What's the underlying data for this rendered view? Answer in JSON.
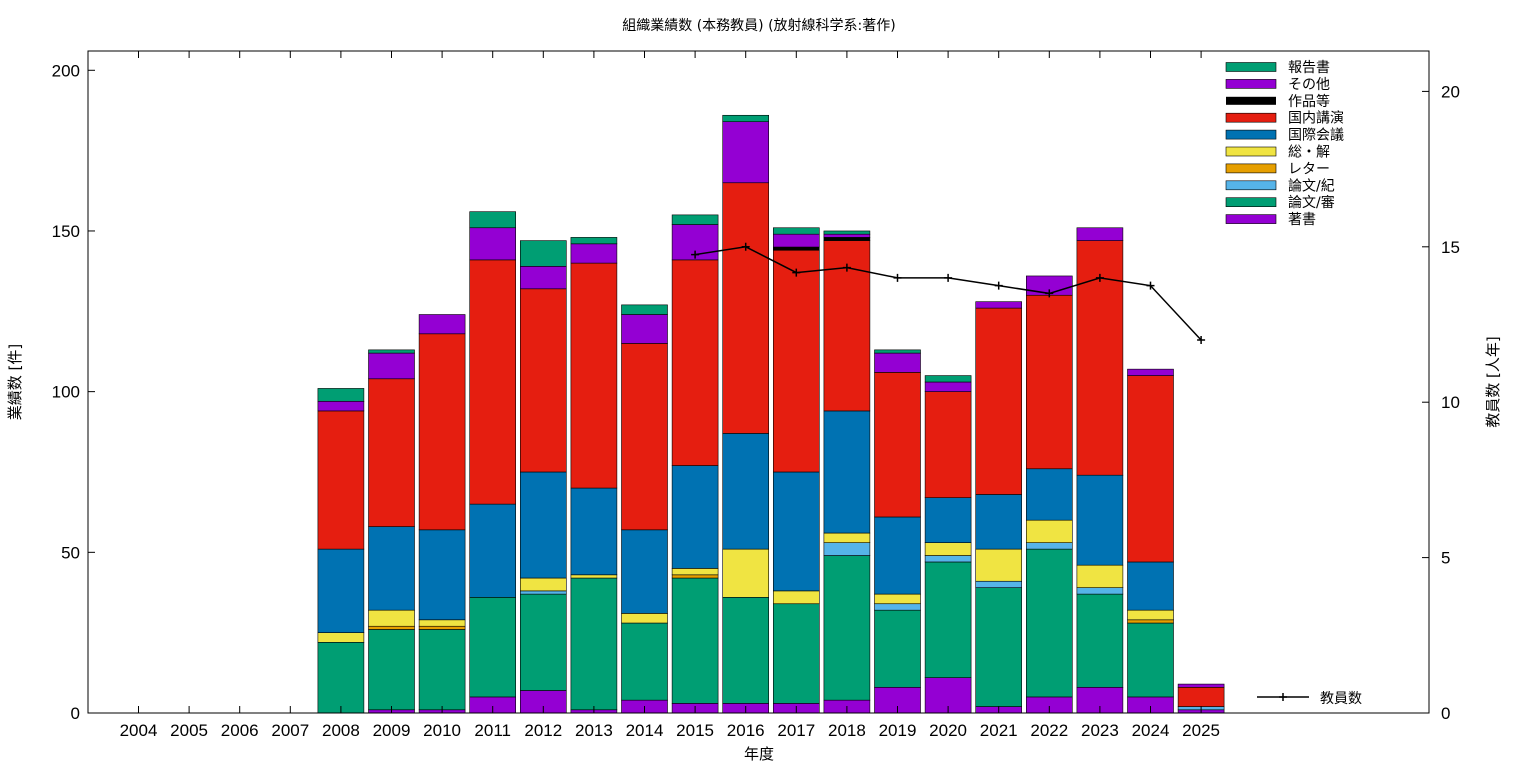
{
  "chart_data": {
    "type": "bar",
    "title": "組織業績数 (本務教員) (放射線科学系:著作)",
    "xlabel": "年度",
    "ylabel": "業績数 [件]",
    "y2label": "教員数 [人年]",
    "ylim": [
      0,
      206
    ],
    "y2lim": [
      0,
      21.3
    ],
    "yticks": [
      "0",
      "50",
      "100",
      "150",
      "200"
    ],
    "y2ticks": [
      "0",
      "5",
      "10",
      "15",
      "20"
    ],
    "categories": [
      "2004",
      "2005",
      "2006",
      "2007",
      "2008",
      "2009",
      "2010",
      "2011",
      "2012",
      "2013",
      "2014",
      "2015",
      "2016",
      "2017",
      "2018",
      "2019",
      "2020",
      "2021",
      "2022",
      "2023",
      "2024",
      "2025"
    ],
    "stacked": true,
    "legend_position": "top-right",
    "series": [
      {
        "name": "著書",
        "color": "#9400d3",
        "values": [
          0,
          0,
          0,
          0,
          0,
          1,
          1,
          5,
          7,
          1,
          4,
          3,
          3,
          3,
          4,
          8,
          11,
          2,
          5,
          8,
          5,
          1
        ]
      },
      {
        "name": "論文/審",
        "color": "#009e73",
        "values": [
          0,
          0,
          0,
          0,
          22,
          25,
          25,
          31,
          30,
          41,
          24,
          39,
          33,
          31,
          45,
          24,
          36,
          37,
          46,
          29,
          23,
          0
        ]
      },
      {
        "name": "論文/紀",
        "color": "#56b4e9",
        "values": [
          0,
          0,
          0,
          0,
          0,
          0,
          0,
          0,
          1,
          0,
          0,
          0,
          0,
          0,
          4,
          2,
          2,
          2,
          2,
          2,
          0,
          1
        ]
      },
      {
        "name": "レター",
        "color": "#e69f00",
        "values": [
          0,
          0,
          0,
          0,
          0,
          1,
          1,
          0,
          0,
          0,
          0,
          1,
          0,
          0,
          0,
          0,
          0,
          0,
          0,
          0,
          1,
          0
        ]
      },
      {
        "name": "総・解",
        "color": "#f0e442",
        "values": [
          0,
          0,
          0,
          0,
          3,
          5,
          2,
          0,
          4,
          1,
          3,
          2,
          15,
          4,
          3,
          3,
          4,
          10,
          7,
          7,
          3,
          0
        ]
      },
      {
        "name": "国際会議",
        "color": "#0072b2",
        "values": [
          0,
          0,
          0,
          0,
          26,
          26,
          28,
          29,
          33,
          27,
          26,
          32,
          36,
          37,
          38,
          24,
          14,
          17,
          16,
          28,
          15,
          0
        ]
      },
      {
        "name": "国内講演",
        "color": "#e51e10",
        "values": [
          0,
          0,
          0,
          0,
          43,
          46,
          61,
          76,
          57,
          70,
          58,
          64,
          78,
          69,
          53,
          45,
          33,
          58,
          54,
          73,
          58,
          6
        ]
      },
      {
        "name": "作品等",
        "color": "#000000",
        "values": [
          0,
          0,
          0,
          0,
          0,
          0,
          0,
          0,
          0,
          0,
          0,
          0,
          0,
          1,
          1,
          0,
          0,
          0,
          0,
          0,
          0,
          0
        ]
      },
      {
        "name": "その他",
        "color": "#9400d3",
        "values": [
          0,
          0,
          0,
          0,
          3,
          8,
          6,
          10,
          7,
          6,
          9,
          11,
          19,
          4,
          1,
          6,
          3,
          2,
          6,
          4,
          2,
          1
        ]
      },
      {
        "name": "報告書",
        "color": "#009e73",
        "values": [
          0,
          0,
          0,
          0,
          4,
          1,
          0,
          5,
          8,
          2,
          3,
          3,
          2,
          2,
          1,
          1,
          2,
          0,
          0,
          0,
          0,
          0
        ]
      }
    ],
    "line_series": {
      "name": "教員数",
      "color": "#000000",
      "axis": "right",
      "x": [
        "2015",
        "2016",
        "2017",
        "2018",
        "2019",
        "2020",
        "2021",
        "2022",
        "2023",
        "2024",
        "2025"
      ],
      "values": [
        14.75,
        15.0,
        14.17,
        14.33,
        14.0,
        14.0,
        13.75,
        13.5,
        14.0,
        13.75,
        12.0
      ]
    }
  }
}
